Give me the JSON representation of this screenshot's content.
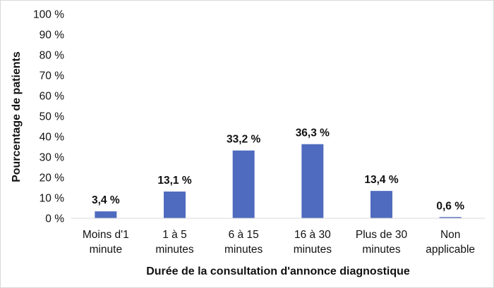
{
  "chart_data": {
    "type": "bar",
    "title": "",
    "xlabel": "Durée de la consultation d'annonce diagnostique",
    "ylabel": "Pourcentage de patients",
    "ylim": [
      0,
      100
    ],
    "y_ticks": [
      "0 %",
      "10 %",
      "20 %",
      "30 %",
      "40 %",
      "50 %",
      "60 %",
      "70 %",
      "80 %",
      "90 %",
      "100 %"
    ],
    "categories": [
      [
        "Moins d'1",
        "minute"
      ],
      [
        "1 à 5",
        "minutes"
      ],
      [
        "6 à 15",
        "minutes"
      ],
      [
        "16 à 30",
        "minutes"
      ],
      [
        "Plus de 30",
        "minutes"
      ],
      [
        "Non",
        "applicable"
      ]
    ],
    "values": [
      3.4,
      13.1,
      33.2,
      36.3,
      13.4,
      0.6
    ],
    "data_labels": [
      "3,4 %",
      "13,1 %",
      "33,2 %",
      "36,3 %",
      "13,4 %",
      "0,6 %"
    ],
    "bar_color": "#4f6bbf",
    "grid": false,
    "legend": "none"
  }
}
